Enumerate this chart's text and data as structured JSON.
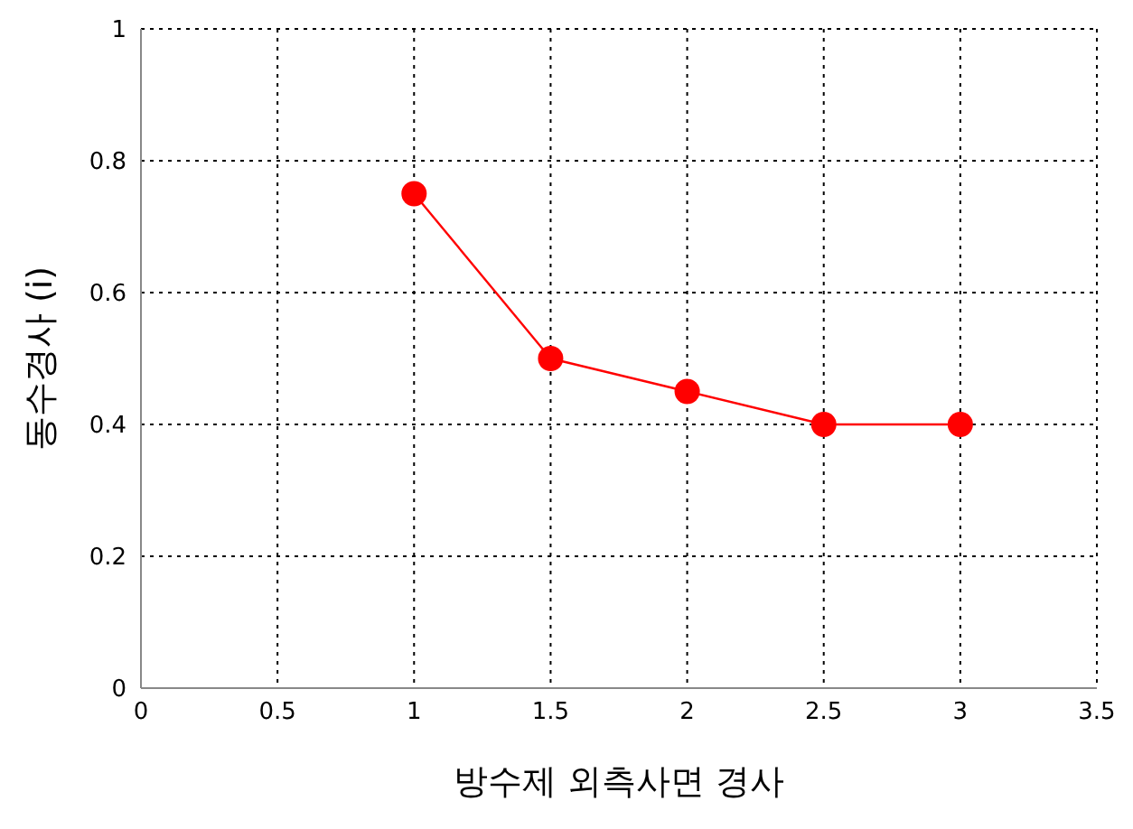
{
  "chart_data": {
    "type": "line",
    "xlabel": "방수제 외측사면 경사",
    "ylabel": "동수경사 (i)",
    "x": [
      1,
      1.5,
      2,
      2.5,
      3
    ],
    "series": [
      {
        "color": "#ff0000",
        "values": [
          0.75,
          0.5,
          0.45,
          0.4,
          0.4
        ]
      }
    ],
    "xlim": [
      0,
      3.5
    ],
    "xticks": [
      0,
      0.5,
      1,
      1.5,
      2,
      2.5,
      3,
      3.5
    ],
    "ylim": [
      0,
      1
    ],
    "yticks": [
      0,
      0.2,
      0.4,
      0.6,
      0.8,
      1
    ],
    "grid": true,
    "marker": "circle",
    "line_style": "solid"
  }
}
